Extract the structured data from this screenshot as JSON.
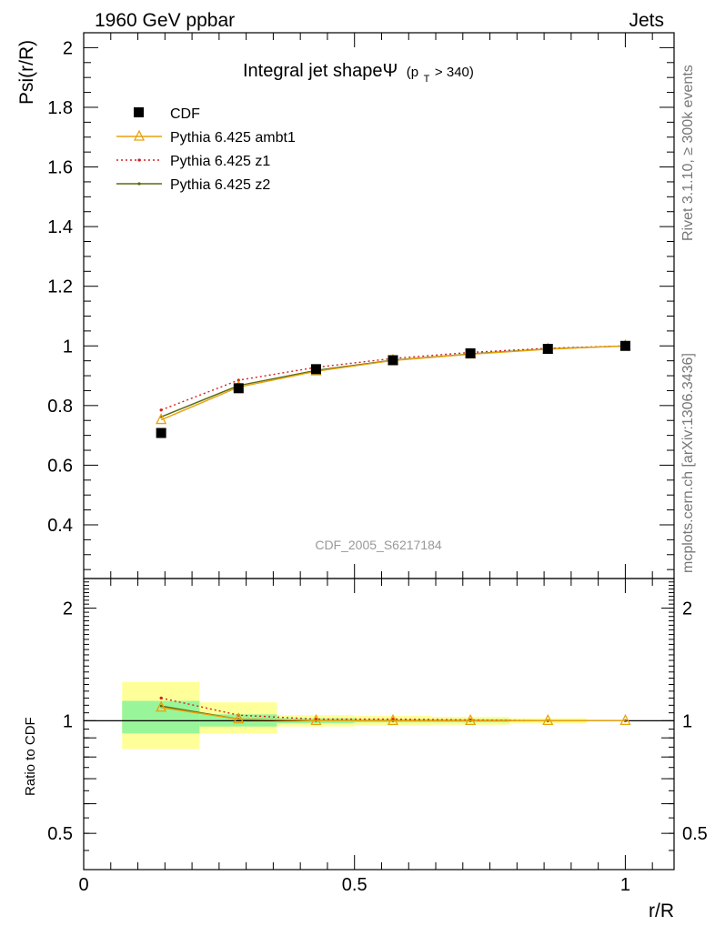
{
  "header": {
    "left": "1960 GeV ppbar",
    "right": "Jets"
  },
  "side": {
    "rivet": "Rivet 3.1.10, ≥ 300k events",
    "mcplots": "mcplots.cern.ch [arXiv:1306.3436]"
  },
  "colors": {
    "cdf": "#000000",
    "ambt1": "#e8a20a",
    "z1": "#d42020",
    "z2": "#5a6a10",
    "band_inner": "#99f599",
    "band_outer": "#ffff99"
  },
  "chart_data": [
    {
      "type": "line",
      "title": "Integral jet shapeΨ",
      "subtitle_main": "(p",
      "subtitle_sub": "T",
      "subtitle_tail": " > 340)",
      "ylabel": "Psi(r/R)",
      "xlabel": "",
      "watermark": "CDF_2005_S6217184",
      "xlim": [
        0,
        1.09
      ],
      "ylim": [
        0.22,
        2.05
      ],
      "yticks": [
        0.4,
        0.6,
        0.8,
        1,
        1.2,
        1.4,
        1.6,
        1.8,
        2
      ],
      "ytick_labels": [
        "0.4",
        "0.6",
        "0.8",
        "1",
        "1.2",
        "1.4",
        "1.6",
        "1.8",
        "2"
      ],
      "legend_position": "top-left",
      "series": [
        {
          "name": "CDF",
          "style": "markers",
          "x": [
            0.143,
            0.286,
            0.429,
            0.571,
            0.714,
            0.857,
            1.0
          ],
          "values": [
            0.708,
            0.858,
            0.922,
            0.952,
            0.975,
            0.99,
            1.0
          ]
        },
        {
          "name": "Pythia 6.425 ambt1",
          "style": "triangles",
          "x": [
            0.143,
            0.286,
            0.429,
            0.571,
            0.714,
            0.857,
            1.0
          ],
          "values": [
            0.752,
            0.862,
            0.915,
            0.951,
            0.972,
            0.989,
            1.0
          ]
        },
        {
          "name": "Pythia 6.425 z1",
          "style": "dotted",
          "x": [
            0.143,
            0.286,
            0.429,
            0.571,
            0.714,
            0.857,
            1.0
          ],
          "values": [
            0.785,
            0.885,
            0.928,
            0.958,
            0.978,
            0.992,
            1.0
          ]
        },
        {
          "name": "Pythia 6.425 z2",
          "style": "solid",
          "x": [
            0.143,
            0.286,
            0.429,
            0.571,
            0.714,
            0.857,
            1.0
          ],
          "values": [
            0.762,
            0.867,
            0.918,
            0.952,
            0.973,
            0.99,
            1.0
          ]
        }
      ]
    },
    {
      "type": "line",
      "ylabel": "Ratio to CDF",
      "xlabel": "r/R",
      "xlim": [
        0,
        1.09
      ],
      "ylim": [
        0.4,
        2.4
      ],
      "log_y": true,
      "yticks": [
        0.5,
        1,
        2
      ],
      "ytick_labels": [
        "0.5",
        "1",
        "2"
      ],
      "xticks": [
        0,
        0.5,
        1
      ],
      "xtick_labels": [
        "0",
        "0.5",
        "1"
      ],
      "bands": [
        {
          "x0": 0.071,
          "x1": 0.214,
          "inner": [
            0.925,
            1.13
          ],
          "outer": [
            0.84,
            1.27
          ]
        },
        {
          "x0": 0.214,
          "x1": 0.357,
          "inner": [
            0.965,
            1.04
          ],
          "outer": [
            0.925,
            1.12
          ]
        },
        {
          "x0": 0.357,
          "x1": 0.5,
          "inner": [
            0.985,
            1.015
          ],
          "outer": [
            0.965,
            1.035
          ]
        },
        {
          "x0": 0.5,
          "x1": 0.643,
          "inner": [
            0.99,
            1.01
          ],
          "outer": [
            0.97,
            1.03
          ]
        },
        {
          "x0": 0.643,
          "x1": 0.786,
          "inner": [
            0.99,
            1.01
          ],
          "outer": [
            0.975,
            1.025
          ]
        },
        {
          "x0": 0.786,
          "x1": 0.929,
          "inner": [
            0.995,
            1.005
          ],
          "outer": [
            0.985,
            1.015
          ]
        }
      ],
      "series": [
        {
          "name": "Pythia 6.425 ambt1",
          "style": "triangles",
          "x": [
            0.143,
            0.286,
            0.429,
            0.571,
            0.714,
            0.857,
            1.0
          ],
          "values": [
            1.085,
            1.01,
            1.0,
            1.0,
            1.0,
            1.0,
            1.0
          ]
        },
        {
          "name": "Pythia 6.425 z1",
          "style": "dotted",
          "x": [
            0.143,
            0.286,
            0.429,
            0.571,
            0.714,
            0.857,
            1.0
          ],
          "values": [
            1.15,
            1.035,
            1.01,
            1.01,
            1.005,
            1.0,
            1.0
          ]
        },
        {
          "name": "Pythia 6.425 z2",
          "style": "solid",
          "x": [
            0.143,
            0.286,
            0.429,
            0.571,
            0.714,
            0.857,
            1.0
          ],
          "values": [
            1.095,
            1.01,
            1.0,
            1.0,
            1.0,
            1.0,
            1.0
          ]
        }
      ]
    }
  ]
}
